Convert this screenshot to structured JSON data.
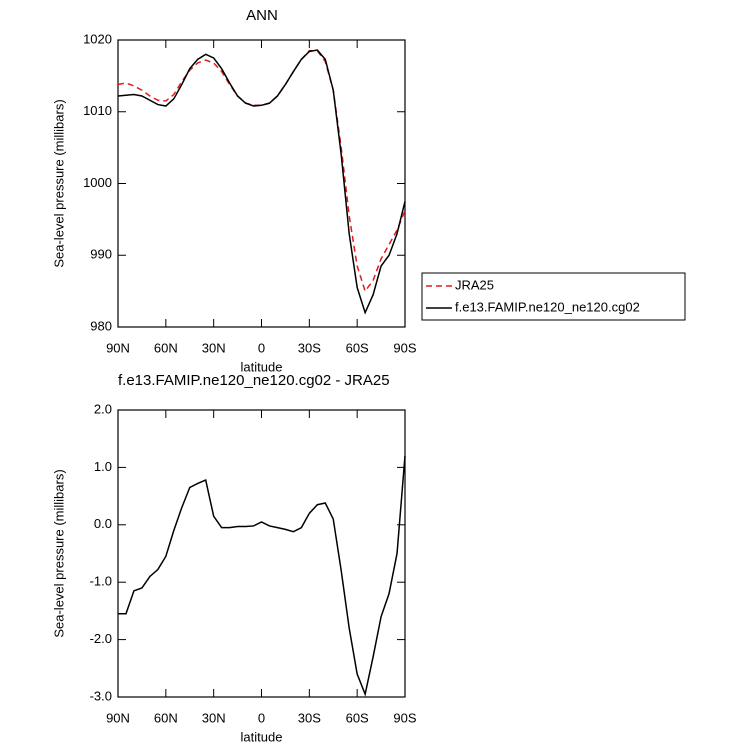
{
  "chart_data": [
    {
      "type": "line",
      "title": "ANN",
      "xlabel": "latitude",
      "ylabel": "Sea-level pressure (millibars)",
      "x": [
        90,
        85,
        80,
        75,
        70,
        65,
        60,
        55,
        50,
        45,
        40,
        35,
        30,
        25,
        20,
        15,
        10,
        5,
        0,
        -5,
        -10,
        -15,
        -20,
        -25,
        -30,
        -35,
        -40,
        -45,
        -50,
        -55,
        -60,
        -65,
        -70,
        -75,
        -80,
        -85,
        -90
      ],
      "series": [
        {
          "name": "JRA25",
          "color": "#e41a1c",
          "line_style": "dashed",
          "values": [
            1013.8,
            1014.0,
            1013.6,
            1013.0,
            1012.2,
            1011.6,
            1011.5,
            1012.4,
            1014.2,
            1015.8,
            1016.8,
            1017.2,
            1016.8,
            1015.6,
            1013.8,
            1012.2,
            1011.2,
            1010.9,
            1010.9,
            1011.2,
            1012.2,
            1013.8,
            1015.6,
            1017.3,
            1018.5,
            1018.5,
            1017.0,
            1013.0,
            1005.0,
            995.5,
            988.5,
            985.0,
            986.5,
            989.5,
            991.5,
            993.5,
            996.2
          ]
        },
        {
          "name": "f.e13.FAMIP.ne120_ne120.cg02",
          "color": "#000000",
          "line_style": "solid",
          "values": [
            1012.2,
            1012.3,
            1012.4,
            1012.2,
            1011.6,
            1011.0,
            1010.8,
            1011.8,
            1013.8,
            1016.0,
            1017.3,
            1018.0,
            1017.5,
            1016.0,
            1014.0,
            1012.2,
            1011.2,
            1010.8,
            1010.9,
            1011.2,
            1012.2,
            1013.8,
            1015.6,
            1017.3,
            1018.4,
            1018.6,
            1017.3,
            1013.0,
            1004.0,
            993.0,
            985.5,
            982.0,
            984.5,
            988.5,
            990.0,
            993.0,
            997.5
          ]
        }
      ],
      "xlim": [
        90,
        -90
      ],
      "xticks": [
        {
          "value": 90,
          "label": "90N"
        },
        {
          "value": 60,
          "label": "60N"
        },
        {
          "value": 30,
          "label": "30N"
        },
        0,
        {
          "value": -30,
          "label": "30S"
        },
        {
          "value": -60,
          "label": "60S"
        },
        {
          "value": -90,
          "label": "90S"
        }
      ],
      "ylim": [
        980,
        1020
      ],
      "yticks": [
        980,
        990,
        1000,
        1010,
        1020
      ],
      "legend": "right"
    },
    {
      "type": "line",
      "title": "f.e13.FAMIP.ne120_ne120.cg02 - JRA25",
      "xlabel": "latitude",
      "ylabel": "Sea-level pressure (millibars)",
      "x": [
        90,
        85,
        80,
        75,
        70,
        65,
        60,
        55,
        50,
        45,
        40,
        35,
        30,
        25,
        20,
        15,
        10,
        5,
        0,
        -5,
        -10,
        -15,
        -20,
        -25,
        -30,
        -35,
        -40,
        -45,
        -50,
        -55,
        -60,
        -65,
        -70,
        -75,
        -80,
        -85,
        -90
      ],
      "values": [
        -1.55,
        -1.55,
        -1.15,
        -1.1,
        -0.9,
        -0.78,
        -0.55,
        -0.1,
        0.3,
        0.65,
        0.72,
        0.78,
        0.15,
        -0.05,
        -0.05,
        -0.03,
        -0.03,
        -0.02,
        0.05,
        -0.02,
        -0.05,
        -0.08,
        -0.12,
        -0.05,
        0.2,
        0.35,
        0.38,
        0.1,
        -0.8,
        -1.8,
        -2.6,
        -2.95,
        -2.3,
        -1.6,
        -1.2,
        -0.5,
        1.2
      ],
      "color": "#000000",
      "xlim": [
        90,
        -90
      ],
      "xticks": [
        {
          "value": 90,
          "label": "90N"
        },
        {
          "value": 60,
          "label": "60N"
        },
        {
          "value": 30,
          "label": "30N"
        },
        0,
        {
          "value": -30,
          "label": "30S"
        },
        {
          "value": -60,
          "label": "60S"
        },
        {
          "value": -90,
          "label": "90S"
        }
      ],
      "ylim": [
        -3,
        2
      ],
      "yticks": [
        {
          "value": -3,
          "label": "-3.0"
        },
        {
          "value": -2,
          "label": "-2.0"
        },
        {
          "value": -1,
          "label": "-1.0"
        },
        {
          "value": 0,
          "label": "0.0"
        },
        {
          "value": 1,
          "label": "1.0"
        },
        {
          "value": 2,
          "label": "2.0"
        }
      ]
    }
  ]
}
